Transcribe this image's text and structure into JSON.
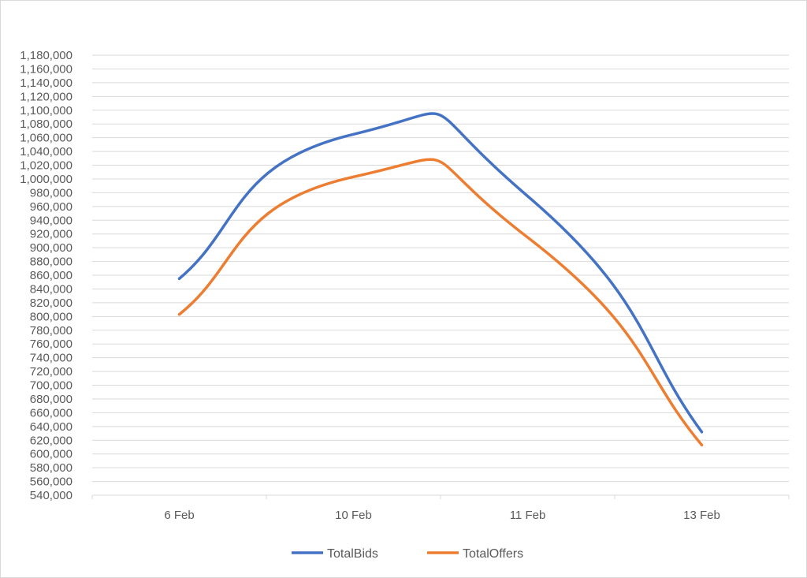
{
  "chart_data": {
    "type": "line",
    "smooth": true,
    "categories": [
      "6 Feb",
      "10 Feb",
      "11 Feb",
      "13 Feb"
    ],
    "series": [
      {
        "name": "TotalBids",
        "color": "#4472c4",
        "values": [
          855000,
          1065000,
          975000,
          632000
        ]
      },
      {
        "name": "TotalOffers",
        "color": "#ed7d31",
        "values": [
          803000,
          1003000,
          915000,
          613000
        ]
      }
    ],
    "ylim": [
      540000,
      1180000
    ],
    "ytick_step": 20000,
    "grid": true,
    "legend": "bottom"
  }
}
